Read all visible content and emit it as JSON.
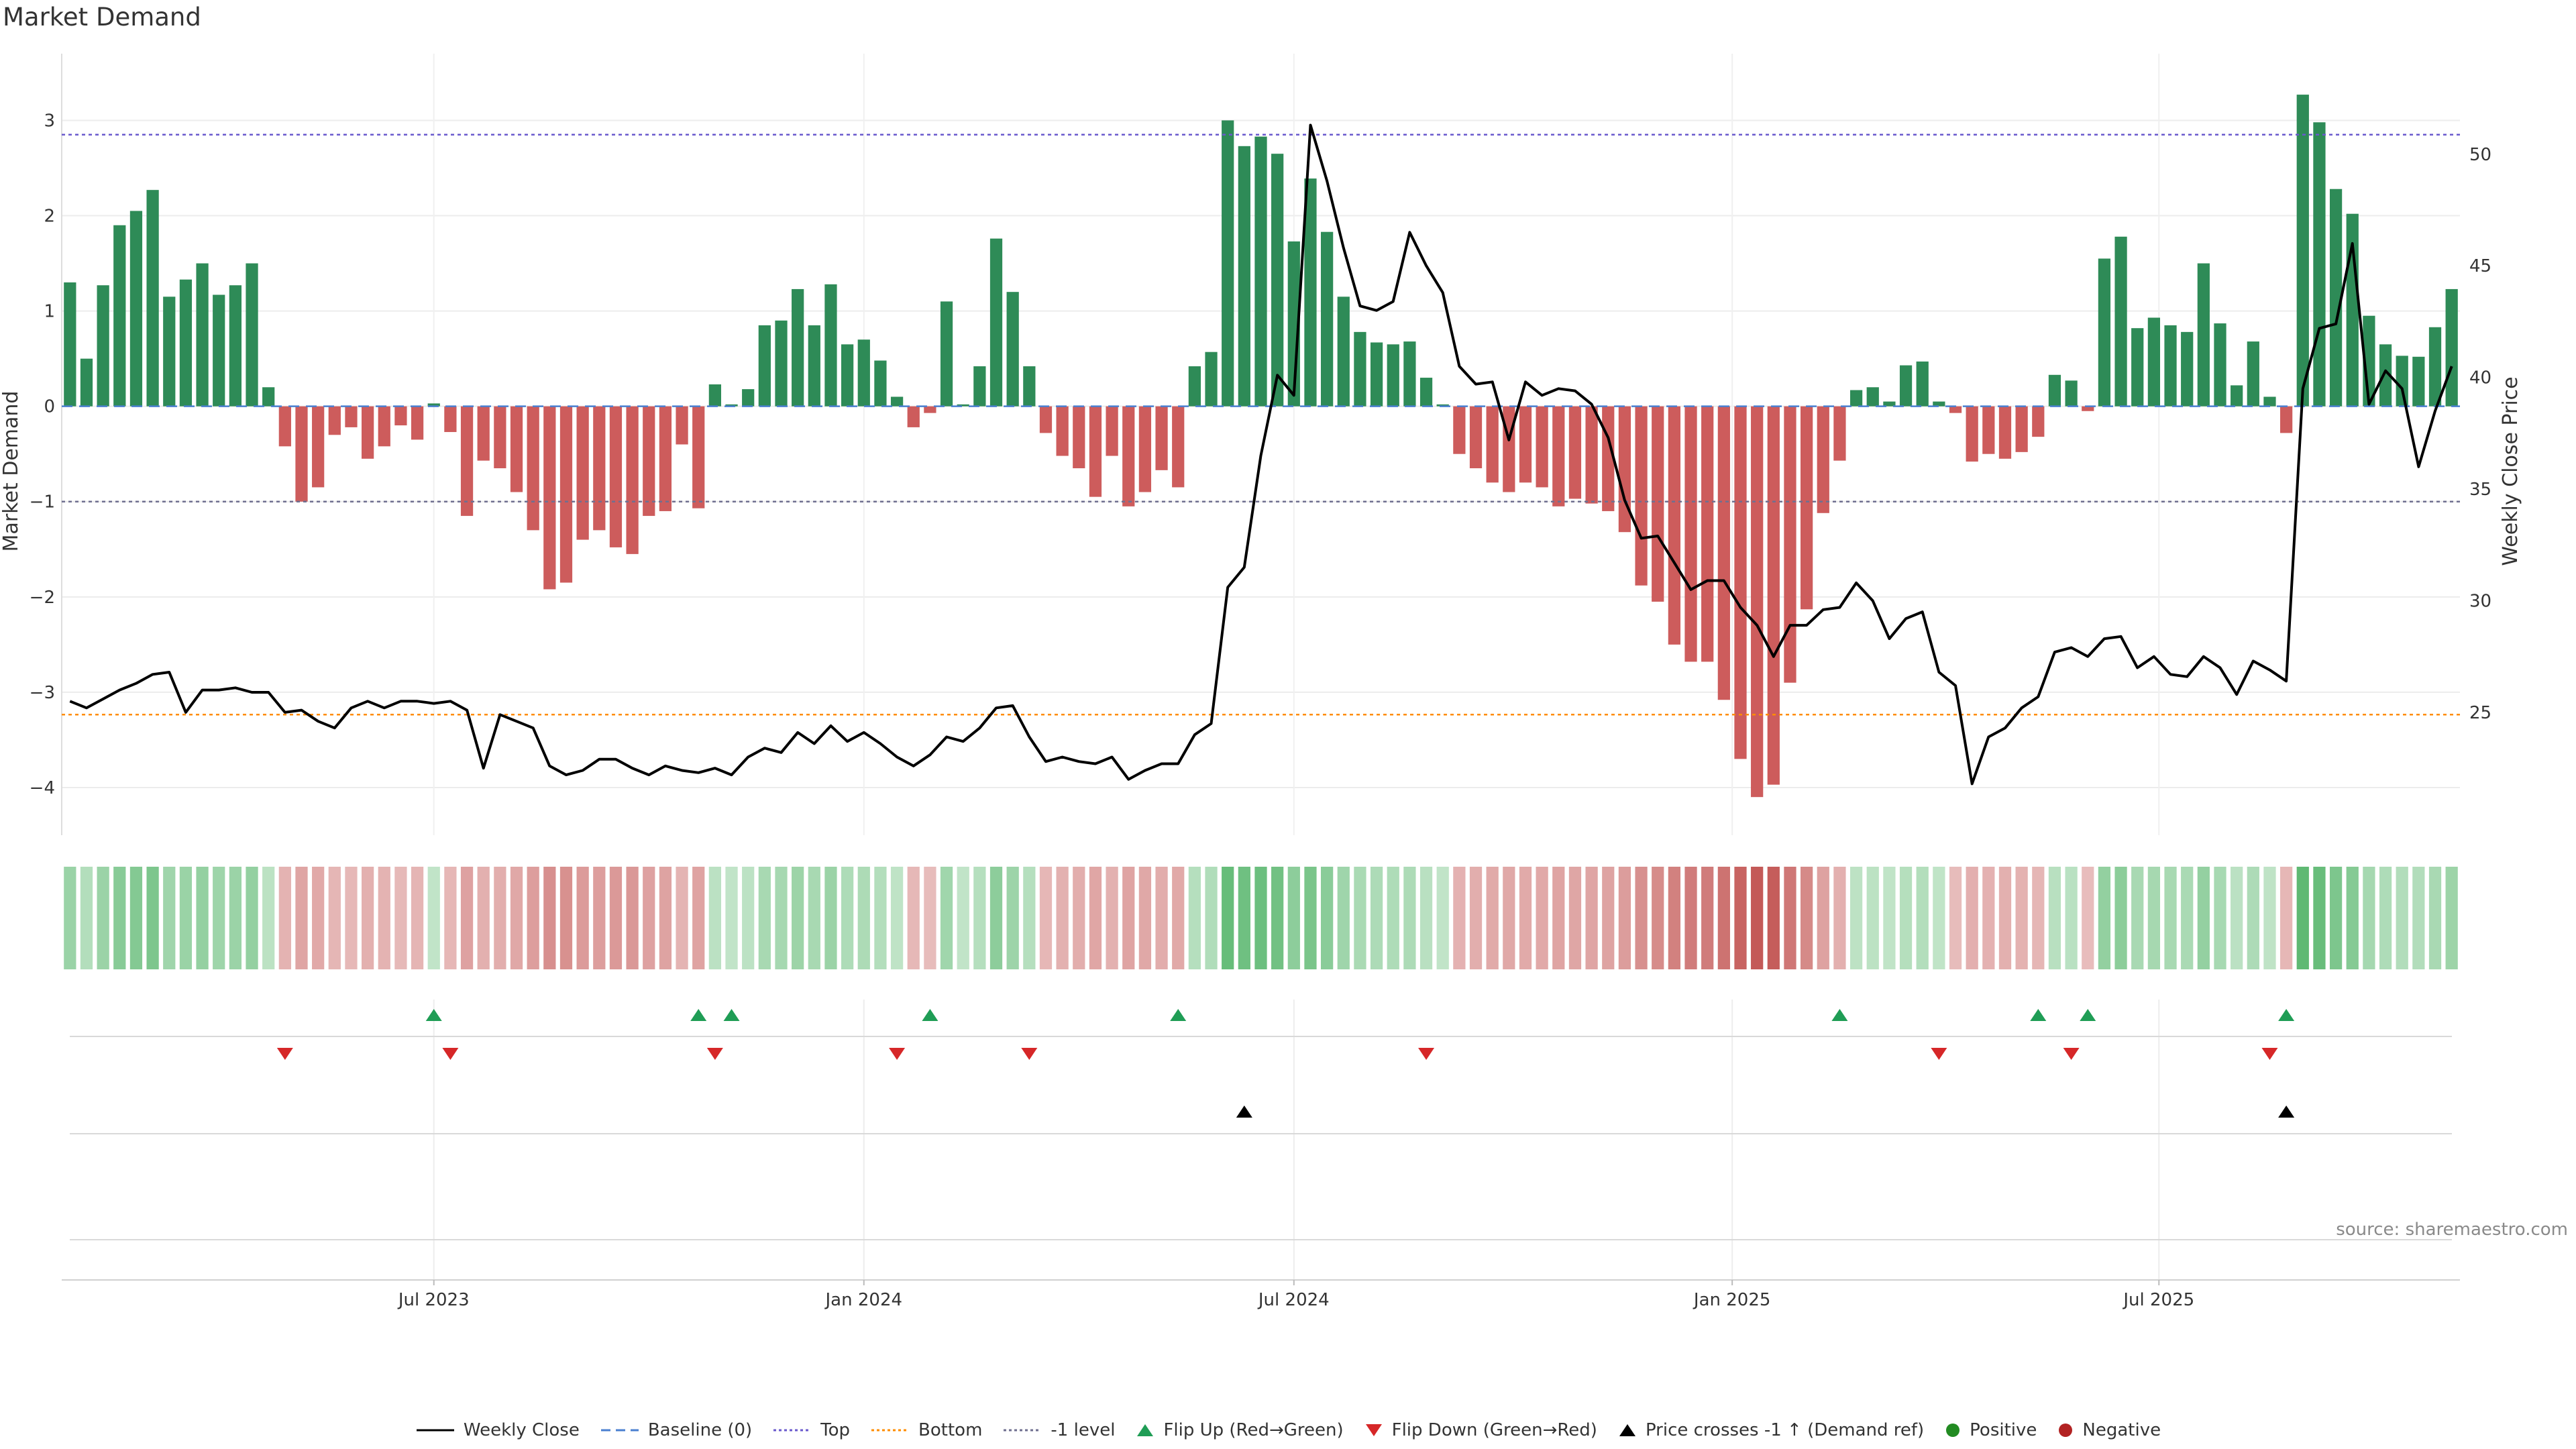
{
  "chart_data": {
    "type": "bar",
    "title": "Market Demand",
    "ylabel": "Market Demand",
    "y2label": "Weekly Close Price",
    "ylim": [
      -4.5,
      3.7
    ],
    "y2lim": [
      19.5,
      54.5
    ],
    "yticks": [
      -4,
      -3,
      -2,
      -1,
      0,
      1,
      2,
      3
    ],
    "y2ticks": [
      25,
      30,
      35,
      40,
      45,
      50
    ],
    "ytick_labels": [
      "−4",
      "−3",
      "−2",
      "−1",
      "0",
      "1",
      "2",
      "3"
    ],
    "y2tick_labels": [
      "25",
      "30",
      "35",
      "40",
      "45",
      "50"
    ],
    "xticks": [
      {
        "label": "Jul 2023",
        "week": 22
      },
      {
        "label": "Jan 2024",
        "week": 48
      },
      {
        "label": "Jul 2024",
        "week": 74
      },
      {
        "label": "Jan 2025",
        "week": 100.5
      },
      {
        "label": "Jul 2025",
        "week": 126.3
      }
    ],
    "grid": true,
    "legend_position": "bottom-center",
    "reference_lines": {
      "top": 2.85,
      "bottom_price": 24.9,
      "minus_one": -1,
      "baseline": 0
    },
    "series": [
      {
        "name": "Market Demand",
        "type": "bar",
        "values": [
          1.3,
          0.5,
          1.27,
          1.9,
          2.05,
          2.27,
          1.15,
          1.33,
          1.5,
          1.17,
          1.27,
          1.5,
          0.2,
          -0.42,
          -1.0,
          -0.85,
          -0.3,
          -0.22,
          -0.55,
          -0.42,
          -0.2,
          -0.35,
          0.03,
          -0.27,
          -1.15,
          -0.57,
          -0.65,
          -0.9,
          -1.3,
          -1.92,
          -1.85,
          -1.4,
          -1.3,
          -1.48,
          -1.55,
          -1.15,
          -1.1,
          -0.4,
          -1.07,
          0.23,
          0.02,
          0.18,
          0.85,
          0.9,
          1.23,
          0.85,
          1.28,
          0.65,
          0.7,
          0.48,
          0.1,
          -0.22,
          -0.07,
          1.1,
          0.02,
          0.42,
          1.76,
          1.2,
          0.42,
          -0.28,
          -0.52,
          -0.65,
          -0.95,
          -0.52,
          -1.05,
          -0.9,
          -0.67,
          -0.85,
          0.42,
          0.57,
          3.0,
          2.73,
          2.83,
          2.65,
          1.73,
          2.39,
          1.83,
          1.15,
          0.78,
          0.67,
          0.65,
          0.68,
          0.3,
          0.02,
          -0.5,
          -0.65,
          -0.8,
          -0.9,
          -0.8,
          -0.85,
          -1.05,
          -0.97,
          -1.02,
          -1.1,
          -1.32,
          -1.88,
          -2.05,
          -2.5,
          -2.68,
          -2.68,
          -3.08,
          -3.7,
          -4.1,
          -3.97,
          -2.9,
          -2.13,
          -1.12,
          -0.57,
          0.17,
          0.2,
          0.05,
          0.43,
          0.47,
          0.05,
          -0.07,
          -0.58,
          -0.5,
          -0.55,
          -0.48,
          -0.32,
          0.33,
          0.27,
          -0.05,
          1.55,
          1.78,
          0.82,
          0.93,
          0.85,
          0.78,
          1.5,
          0.87,
          0.22,
          0.68,
          0.1,
          -0.28,
          3.27,
          2.98,
          2.28,
          2.02,
          0.95,
          0.65,
          0.53,
          0.52,
          0.83,
          1.23
        ]
      },
      {
        "name": "Weekly Close",
        "type": "line",
        "axis": "y2",
        "values": [
          25.5,
          25.2,
          25.6,
          26.0,
          26.3,
          26.7,
          26.8,
          25.0,
          26.0,
          26.0,
          26.1,
          25.9,
          25.9,
          25.0,
          25.1,
          24.6,
          24.3,
          25.2,
          25.5,
          25.2,
          25.5,
          25.5,
          25.4,
          25.5,
          25.1,
          22.5,
          24.9,
          24.6,
          24.3,
          22.6,
          22.2,
          22.4,
          22.9,
          22.9,
          22.5,
          22.2,
          22.6,
          22.4,
          22.3,
          22.5,
          22.2,
          23.0,
          23.4,
          23.2,
          24.1,
          23.6,
          24.4,
          23.7,
          24.1,
          23.6,
          23.0,
          22.6,
          23.1,
          23.9,
          23.7,
          24.3,
          25.2,
          25.3,
          23.9,
          22.8,
          23.0,
          22.8,
          22.7,
          23.0,
          22.0,
          22.4,
          22.7,
          22.7,
          24.0,
          24.5,
          30.6,
          31.5,
          36.5,
          40.1,
          39.2,
          51.3,
          48.8,
          45.8,
          43.2,
          43.0,
          43.4,
          46.5,
          45.0,
          43.8,
          40.5,
          39.7,
          39.8,
          37.2,
          39.8,
          39.2,
          39.5,
          39.4,
          38.8,
          37.3,
          34.5,
          32.8,
          32.9,
          31.7,
          30.5,
          30.9,
          30.9,
          29.7,
          28.9,
          27.5,
          28.9,
          28.9,
          29.6,
          29.7,
          30.8,
          30.0,
          28.3,
          29.2,
          29.5,
          26.8,
          26.2,
          21.8,
          23.9,
          24.3,
          25.2,
          25.7,
          27.7,
          27.9,
          27.5,
          28.3,
          28.4,
          27.0,
          27.5,
          26.7,
          26.6,
          27.5,
          27.0,
          25.8,
          27.3,
          26.9,
          26.4,
          39.5,
          42.2,
          42.4,
          46.0,
          38.8,
          40.3,
          39.5,
          36.0,
          38.5,
          40.5
        ]
      }
    ],
    "flip_up_weeks": [
      22,
      38,
      40,
      52,
      67,
      107,
      119,
      122,
      134
    ],
    "flip_down_weeks": [
      13,
      23,
      39,
      50,
      58,
      82,
      113,
      121,
      133
    ],
    "price_cross_weeks": [
      71,
      134
    ],
    "colors": {
      "bar_positive": "#2e8b57",
      "bar_negative": "#cd5c5c",
      "price_line": "#000000",
      "top_line": "#6a5acd",
      "bottom_line": "#ff8c00",
      "minus_one_line": "#6f6f8f",
      "baseline": "#4a7fd0",
      "flip_up": "#1f9d55",
      "flip_down": "#d62728",
      "price_cross": "#000000",
      "positive_dot": "#228b22",
      "negative_dot": "#b22222"
    }
  },
  "legend": [
    {
      "label": "Weekly Close",
      "symbol": "solid-line"
    },
    {
      "label": "Baseline (0)",
      "symbol": "dashed-line"
    },
    {
      "label": "Top",
      "symbol": "dotted-line-purple"
    },
    {
      "label": "Bottom",
      "symbol": "dotted-line-orange"
    },
    {
      "label": "-1 level",
      "symbol": "dotted-line-gray"
    },
    {
      "label": "Flip Up (Red→Green)",
      "symbol": "triangle-up-green"
    },
    {
      "label": "Flip Down (Green→Red)",
      "symbol": "triangle-down-red"
    },
    {
      "label": "Price crosses -1 ↑ (Demand ref)",
      "symbol": "triangle-up-black"
    },
    {
      "label": "Positive",
      "symbol": "dot-green"
    },
    {
      "label": "Negative",
      "symbol": "dot-red"
    }
  ],
  "source": "source: sharemaestro.com"
}
